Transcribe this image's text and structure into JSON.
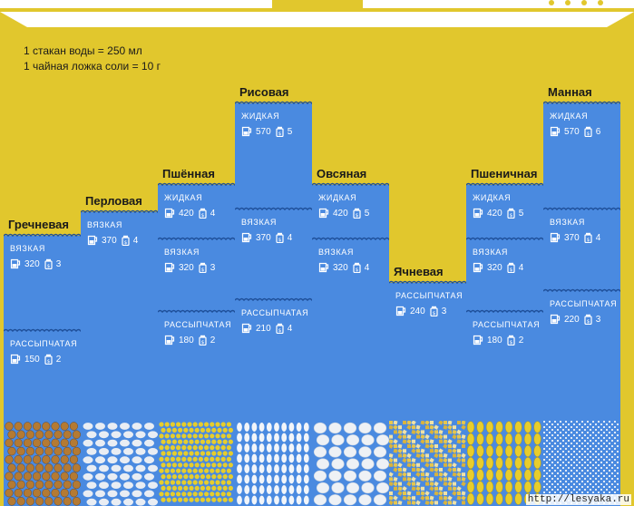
{
  "legend": {
    "water": "1 стакан воды = 250 мл",
    "salt": "1 чайная ложка соли = 10 г"
  },
  "icons": {
    "water": "measuring-jug-icon",
    "salt": "salt-shaker-icon"
  },
  "colors": {
    "pot": "#e1c72d",
    "column": "#4a8ae0",
    "wave": "#1e4f99"
  },
  "columns": [
    {
      "title": "Гречневая",
      "grain_color": "#b47a33",
      "sections": [
        {
          "label": "ВЯЗКАЯ",
          "water": "320",
          "salt": "3"
        },
        {
          "label": "РАССЫПЧАТАЯ",
          "water": "150",
          "salt": "2"
        }
      ]
    },
    {
      "title": "Перловая",
      "grain_color": "#e9edf3",
      "sections": [
        {
          "label": "ВЯЗКАЯ",
          "water": "370",
          "salt": "4"
        }
      ]
    },
    {
      "title": "Пшённая",
      "grain_color": "#e6cd2c",
      "sections": [
        {
          "label": "ЖИДКАЯ",
          "water": "420",
          "salt": "4"
        },
        {
          "label": "ВЯЗКАЯ",
          "water": "320",
          "salt": "3"
        },
        {
          "label": "РАССЫПЧАТАЯ",
          "water": "180",
          "salt": "2"
        }
      ]
    },
    {
      "title": "Рисовая",
      "grain_color": "#f2f5f9",
      "sections": [
        {
          "label": "ЖИДКАЯ",
          "water": "570",
          "salt": "5"
        },
        {
          "label": "ВЯЗКАЯ",
          "water": "370",
          "salt": "4"
        },
        {
          "label": "РАССЫПЧАТАЯ",
          "water": "210",
          "salt": "4"
        }
      ]
    },
    {
      "title": "Овсяная",
      "grain_color": "#eef1f5",
      "sections": [
        {
          "label": "ЖИДКАЯ",
          "water": "420",
          "salt": "5"
        },
        {
          "label": "ВЯЗКАЯ",
          "water": "320",
          "salt": "4"
        }
      ]
    },
    {
      "title": "Ячневая",
      "grain_color": "#e7c64c",
      "sections": [
        {
          "label": "РАССЫПЧАТАЯ",
          "water": "240",
          "salt": "3"
        }
      ]
    },
    {
      "title": "Пшеничная",
      "grain_color": "#e8cd2c",
      "sections": [
        {
          "label": "ЖИДКАЯ",
          "water": "420",
          "salt": "5"
        },
        {
          "label": "ВЯЗКАЯ",
          "water": "320",
          "salt": "4"
        },
        {
          "label": "РАССЫПЧАТАЯ",
          "water": "180",
          "salt": "2"
        }
      ]
    },
    {
      "title": "Манная",
      "grain_color": "#dfe9f6",
      "sections": [
        {
          "label": "ЖИДКАЯ",
          "water": "570",
          "salt": "6"
        },
        {
          "label": "ВЯЗКАЯ",
          "water": "370",
          "salt": "4"
        },
        {
          "label": "РАССЫПЧАТАЯ",
          "water": "220",
          "salt": "3"
        }
      ]
    }
  ],
  "watermark": "http://lesyaka.ru"
}
